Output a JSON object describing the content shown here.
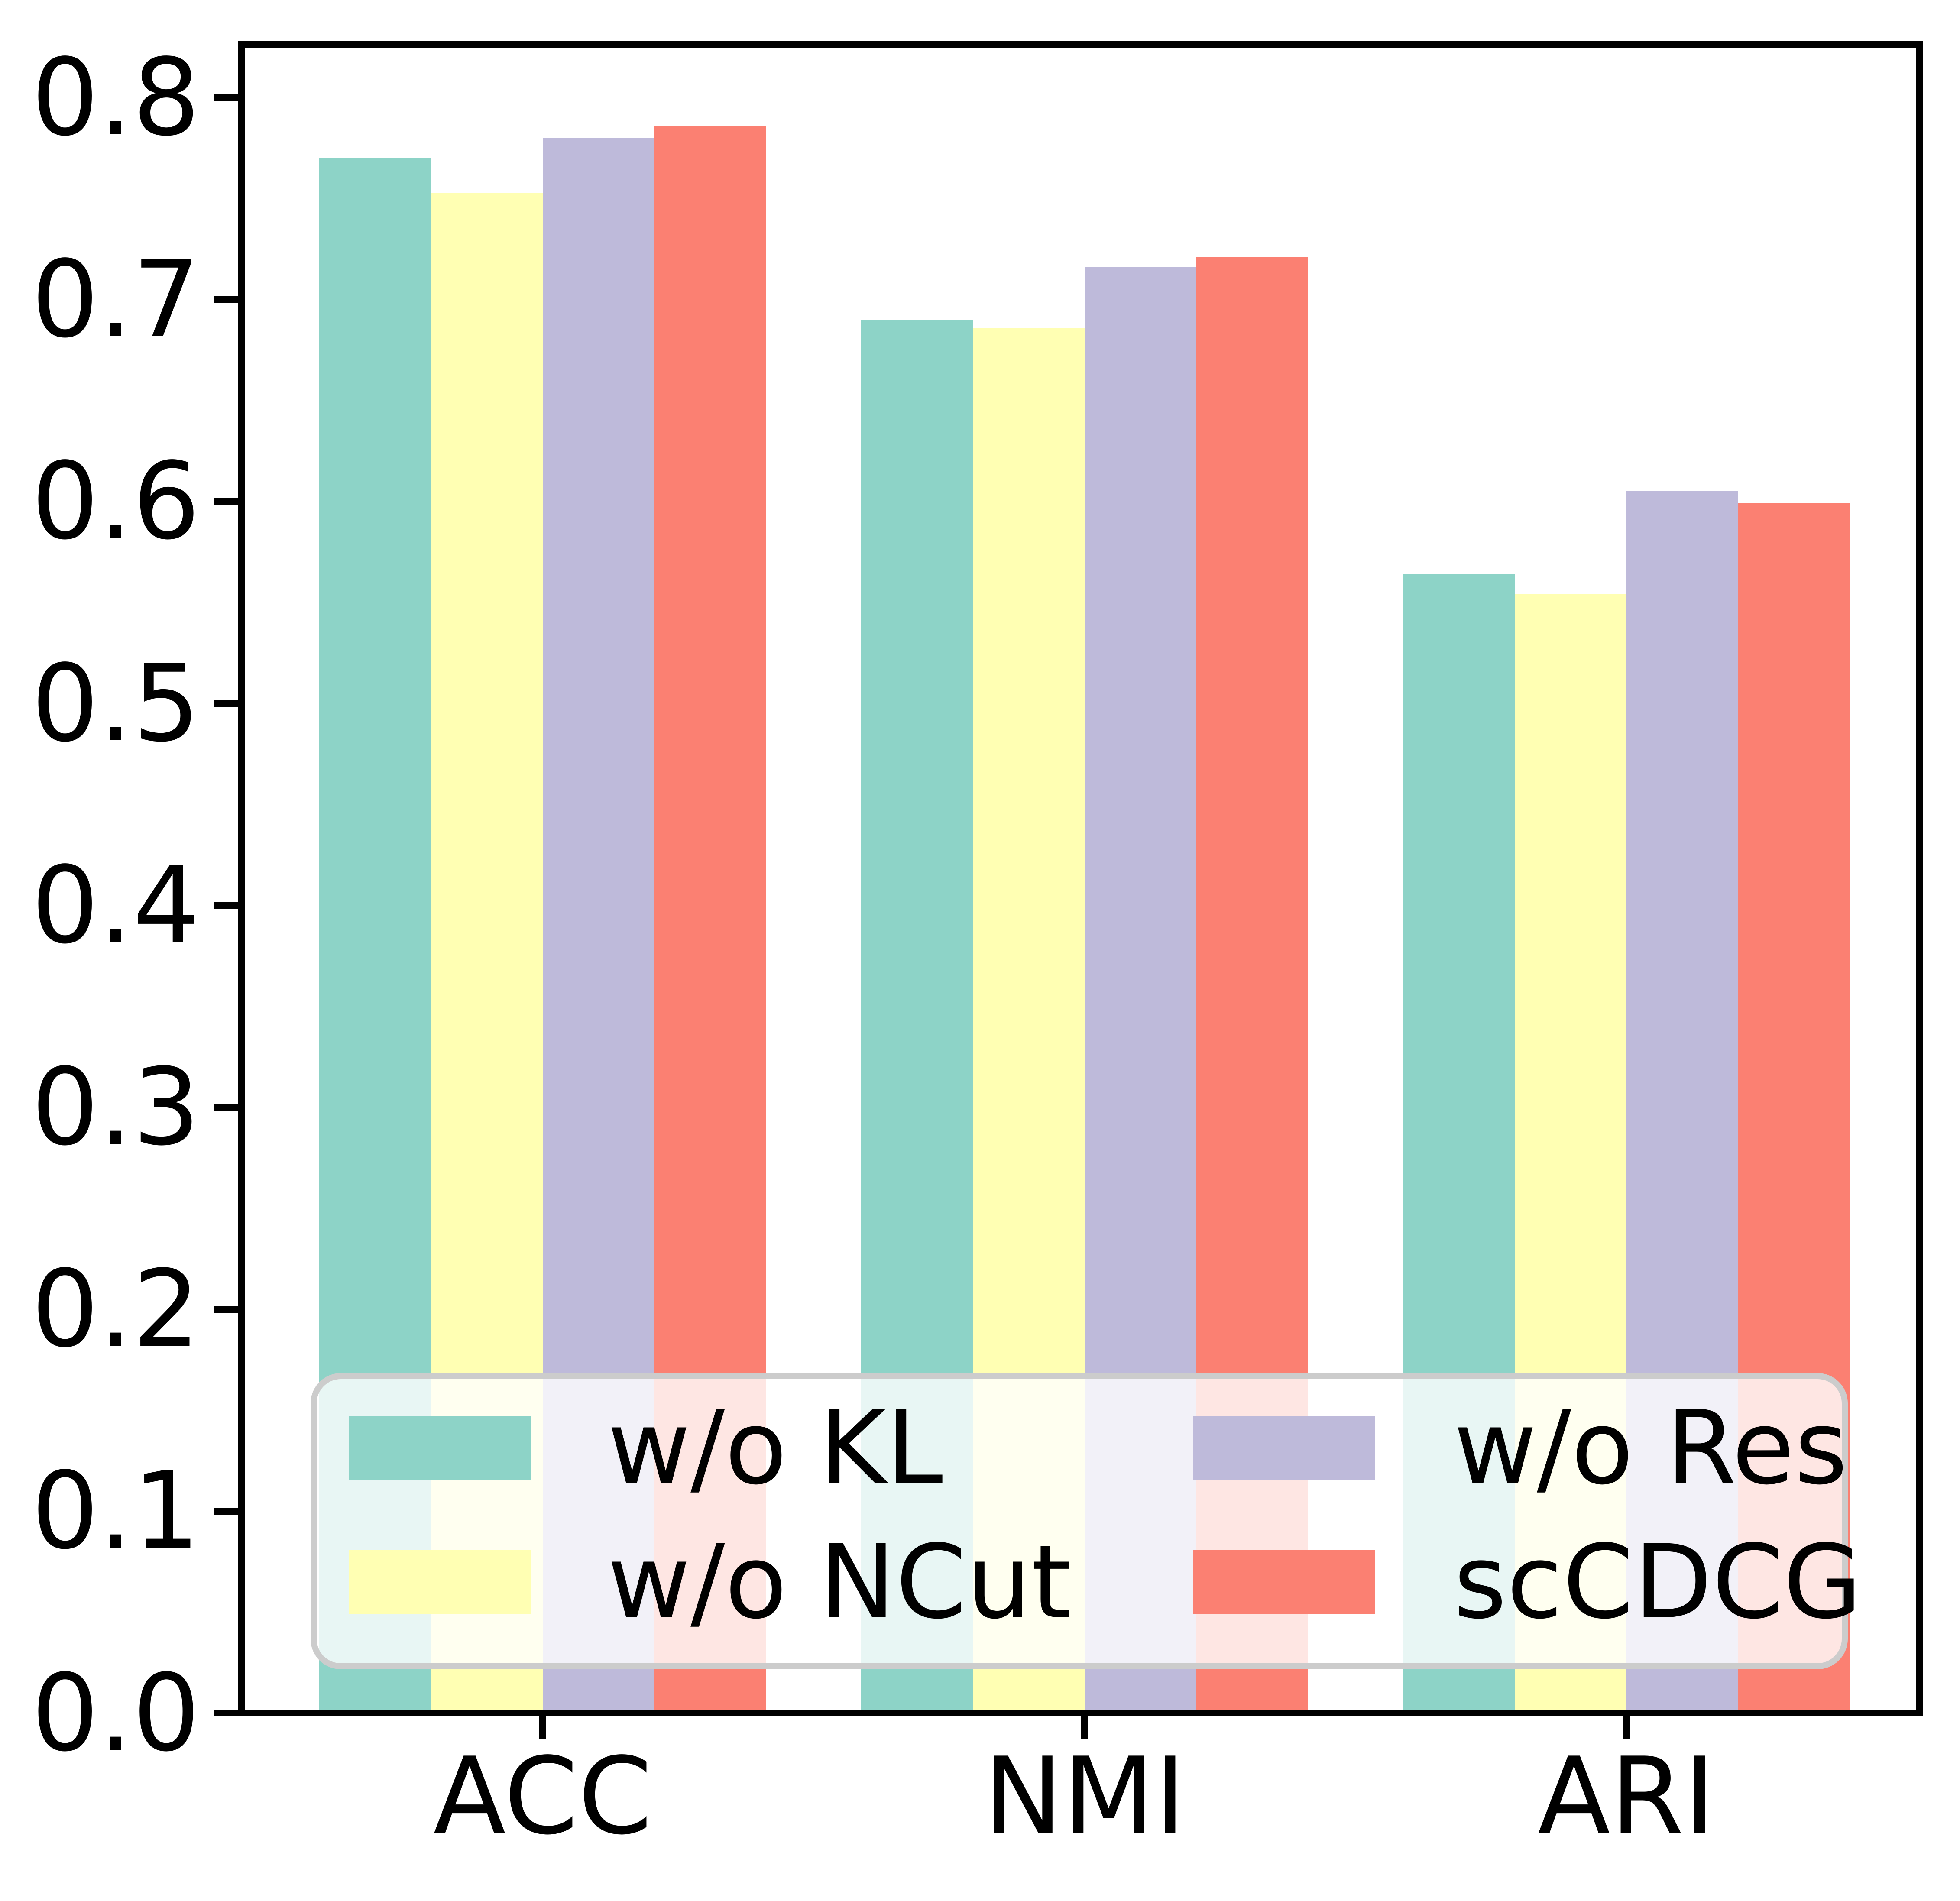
{
  "chart_data": {
    "type": "bar",
    "title": "",
    "xlabel": "",
    "ylabel": "",
    "categories": [
      "ACC",
      "NMI",
      "ARI"
    ],
    "series": [
      {
        "name": "w/o KL",
        "color": "#8dd3c7",
        "values": [
          0.77,
          0.69,
          0.564
        ]
      },
      {
        "name": "w/o NCut",
        "color": "#ffffb3",
        "values": [
          0.753,
          0.686,
          0.554
        ]
      },
      {
        "name": "w/o Res",
        "color": "#bebada",
        "values": [
          0.78,
          0.716,
          0.605
        ]
      },
      {
        "name": "scCDCG",
        "color": "#fb8072",
        "values": [
          0.786,
          0.721,
          0.599
        ]
      }
    ],
    "ylim": [
      0.0,
      0.827
    ],
    "yticks": [
      0.0,
      0.1,
      0.2,
      0.3,
      0.4,
      0.5,
      0.6,
      0.7,
      0.8
    ],
    "ytick_labels": [
      "0.0",
      "0.1",
      "0.2",
      "0.3",
      "0.4",
      "0.5",
      "0.6",
      "0.7",
      "0.8"
    ],
    "grid": false,
    "legend": {
      "position": "lower-center-inside",
      "columns": 2,
      "entries": [
        "w/o KL",
        "w/o NCut",
        "w/o Res",
        "scCDCG"
      ]
    },
    "colors": {
      "axis": "#000000",
      "text": "#000000",
      "legend_border": "#cccccc",
      "legend_background": "rgba(255,255,255,0.8)"
    }
  }
}
